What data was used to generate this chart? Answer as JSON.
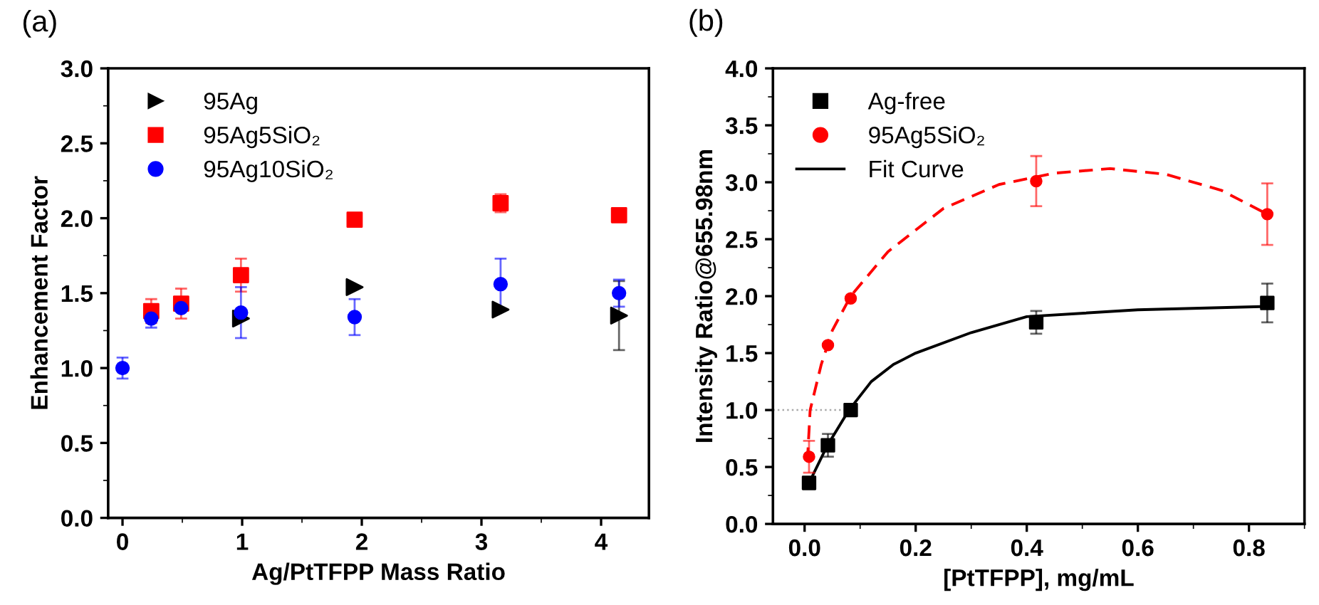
{
  "chart_data": [
    {
      "type": "scatter",
      "xlabel": "Ag/PtTFPP Mass Ratio",
      "ylabel": "Enhancement Factor",
      "annotations": [
        "(a)"
      ],
      "xlim": [
        -0.12,
        4.4
      ],
      "xticks": [
        0,
        1,
        2,
        3,
        4
      ],
      "ylim": [
        0,
        3
      ],
      "yticks": [
        {
          "value": 0,
          "label": "0.0"
        },
        {
          "value": 0.5,
          "label": "0.5"
        },
        {
          "value": 1,
          "label": "1.0"
        },
        {
          "value": 1.5,
          "label": "1.5"
        },
        {
          "value": 2,
          "label": "2.0"
        },
        {
          "value": 2.5,
          "label": "2.5"
        },
        {
          "value": 3,
          "label": "3.0"
        }
      ],
      "grid": false,
      "legend": "top left",
      "series": [
        {
          "name": "95Ag",
          "color": "#000000",
          "marker": "triangle",
          "x": [
            0.99,
            1.94,
            3.16,
            4.15
          ],
          "values": [
            1.33,
            1.54,
            1.39,
            1.35
          ],
          "errors": [
            null,
            null,
            null,
            0.23
          ]
        },
        {
          "name": "95Ag5SiO₂",
          "color": "#ff0000",
          "marker": "square",
          "x": [
            0.24,
            0.49,
            0.99,
            1.94,
            3.16,
            4.15
          ],
          "values": [
            1.38,
            1.43,
            1.62,
            1.99,
            2.1,
            2.02
          ],
          "errors": [
            0.08,
            0.1,
            0.11,
            null,
            0.06,
            null
          ]
        },
        {
          "name": "95Ag10SiO₂",
          "color": "#0000ff",
          "marker": "circle",
          "x": [
            0,
            0.24,
            0.49,
            0.99,
            1.94,
            3.16,
            4.15
          ],
          "values": [
            1.0,
            1.33,
            1.4,
            1.37,
            1.34,
            1.56,
            1.5
          ],
          "errors": [
            0.07,
            0.06,
            null,
            0.17,
            0.12,
            0.17,
            0.09
          ]
        }
      ]
    },
    {
      "type": "scatter",
      "xlabel": "[PtTFPP], mg/mL",
      "ylabel": "Intensity Ratio@655.98nm",
      "annotations": [
        "(b)"
      ],
      "xlim": [
        -0.057,
        0.9
      ],
      "xticks": [
        {
          "value": 0,
          "label": "0.0"
        },
        {
          "value": 0.2,
          "label": "0.2"
        },
        {
          "value": 0.4,
          "label": "0.4"
        },
        {
          "value": 0.6,
          "label": "0.6"
        },
        {
          "value": 0.8,
          "label": "0.8"
        }
      ],
      "ylim": [
        0,
        4
      ],
      "yticks": [
        {
          "value": 0,
          "label": "0.0"
        },
        {
          "value": 0.5,
          "label": "0.5"
        },
        {
          "value": 1,
          "label": "1.0"
        },
        {
          "value": 1.5,
          "label": "1.5"
        },
        {
          "value": 2,
          "label": "2.0"
        },
        {
          "value": 2.5,
          "label": "2.5"
        },
        {
          "value": 3,
          "label": "3.0"
        },
        {
          "value": 3.5,
          "label": "3.5"
        },
        {
          "value": 4,
          "label": "4.0"
        }
      ],
      "grid": false,
      "legend": "top left",
      "series": [
        {
          "type": "line",
          "color": "#aaaaaa",
          "line_style": "dotted",
          "x": [
            -0.057,
            0.083
          ],
          "values": [
            1.0,
            1.0
          ]
        },
        {
          "type": "line",
          "color": "#ff0000",
          "line_style": "dashed",
          "x": [
            0.005,
            0.01,
            0.03,
            0.05,
            0.083,
            0.15,
            0.25,
            0.35,
            0.45,
            0.55,
            0.65,
            0.75,
            0.833
          ],
          "values": [
            0.55,
            1.0,
            1.4,
            1.7,
            2.0,
            2.39,
            2.77,
            2.98,
            3.08,
            3.12,
            3.07,
            2.93,
            2.72
          ]
        },
        {
          "name": "Ag-free",
          "color": "#000000",
          "marker": "square",
          "x": [
            0.008,
            0.042,
            0.083,
            0.417,
            0.833
          ],
          "values": [
            0.36,
            0.69,
            1.0,
            1.77,
            1.94
          ],
          "errors": [
            null,
            0.1,
            0.05,
            0.1,
            0.17
          ]
        },
        {
          "name": "95Ag5SiO₂",
          "color": "#ff0000",
          "marker": "circle",
          "x": [
            0.008,
            0.042,
            0.083,
            0.417,
            0.833
          ],
          "values": [
            0.59,
            1.57,
            1.98,
            3.01,
            2.72
          ],
          "errors": [
            0.14,
            null,
            null,
            0.22,
            0.27
          ]
        },
        {
          "name": "Fit Curve",
          "type": "line",
          "color": "#000000",
          "line_style": "solid",
          "x": [
            0.008,
            0.04,
            0.08,
            0.12,
            0.16,
            0.2,
            0.3,
            0.4,
            0.6,
            0.833
          ],
          "values": [
            0.36,
            0.68,
            1.0,
            1.25,
            1.4,
            1.5,
            1.68,
            1.82,
            1.88,
            1.91
          ]
        }
      ]
    }
  ]
}
